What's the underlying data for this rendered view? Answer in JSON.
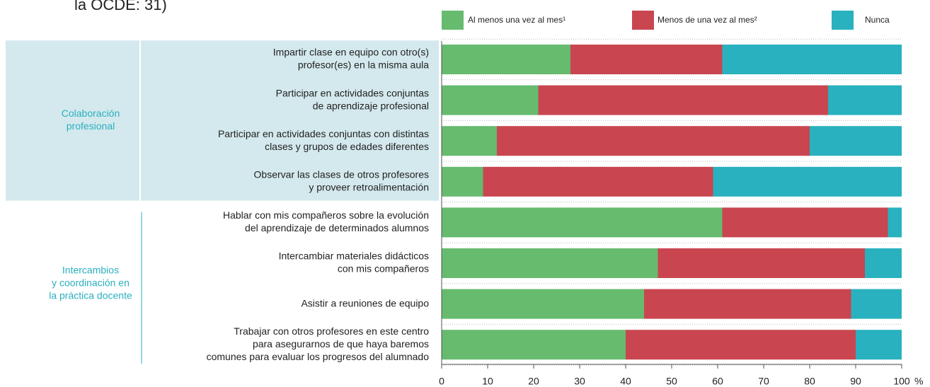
{
  "chart_data": {
    "type": "stacked_barh",
    "title": "la OCDE: 31)",
    "x_unit": "%",
    "categories": [
      [
        "Impartir clase en equipo con otro(s)",
        "profesor(es) en la misma aula"
      ],
      [
        "Participar en actividades conjuntas",
        "de aprendizaje profesional"
      ],
      [
        "Participar en actividades conjuntas con distintas",
        "clases y grupos de edades diferentes"
      ],
      [
        "Observar las clases de otros profesores",
        "y proveer retroalimentación"
      ],
      [
        "Hablar con mis compañeros sobre la evolución",
        "del aprendizaje de determinados alumnos"
      ],
      [
        "Intercambiar materiales didácticos",
        "con mis compañeros"
      ],
      [
        "Asistir a reuniones de equipo"
      ],
      [
        "Trabajar con otros profesores en este centro",
        "para asegurarnos de que haya baremos",
        "comunes para evaluar los progresos del alumnado"
      ]
    ],
    "groups": [
      {
        "label": [
          "Colaboración",
          "profesional"
        ]
      },
      {
        "label": [
          "Intercambios",
          "y coordinación en",
          "la práctica docente"
        ]
      }
    ],
    "series": [
      {
        "name": "Al menos una vez al mes¹",
        "color": "#66bb6e",
        "values": [
          28,
          21,
          12,
          9,
          61,
          47,
          44,
          40
        ]
      },
      {
        "name": "Menos de una vez al mes²",
        "color": "#c94650",
        "values": [
          33,
          63,
          68,
          50,
          36,
          45,
          45,
          50
        ]
      },
      {
        "name": "Nunca",
        "color": "#29b1bf",
        "values": [
          39,
          16,
          20,
          41,
          3,
          8,
          11,
          10
        ]
      }
    ],
    "xlim": [
      0,
      100
    ],
    "xticks": [
      0,
      10,
      20,
      30,
      40,
      50,
      60,
      70,
      80,
      90,
      100
    ]
  }
}
